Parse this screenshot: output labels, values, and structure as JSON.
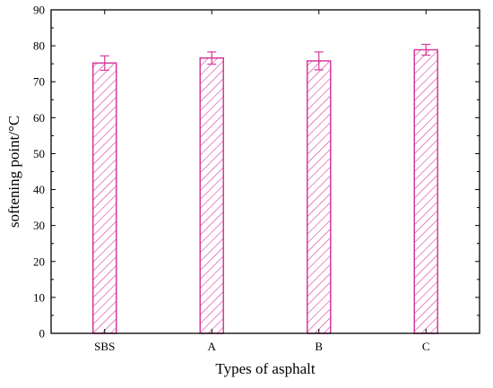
{
  "chart_data": {
    "type": "bar",
    "categories": [
      "SBS",
      "A",
      "B",
      "C"
    ],
    "values": [
      75.2,
      76.6,
      75.8,
      78.9
    ],
    "errors": [
      2.0,
      1.7,
      2.5,
      1.5
    ],
    "xlabel": "Types of asphalt",
    "ylabel": "softening point/°C",
    "ylim": [
      0,
      90
    ],
    "yticks": [
      0,
      10,
      20,
      30,
      40,
      50,
      60,
      70,
      80,
      90
    ],
    "grid": false,
    "bar_fill": "hatched",
    "colors": {
      "bar": "#d63a9a",
      "axis": "#000000"
    }
  }
}
